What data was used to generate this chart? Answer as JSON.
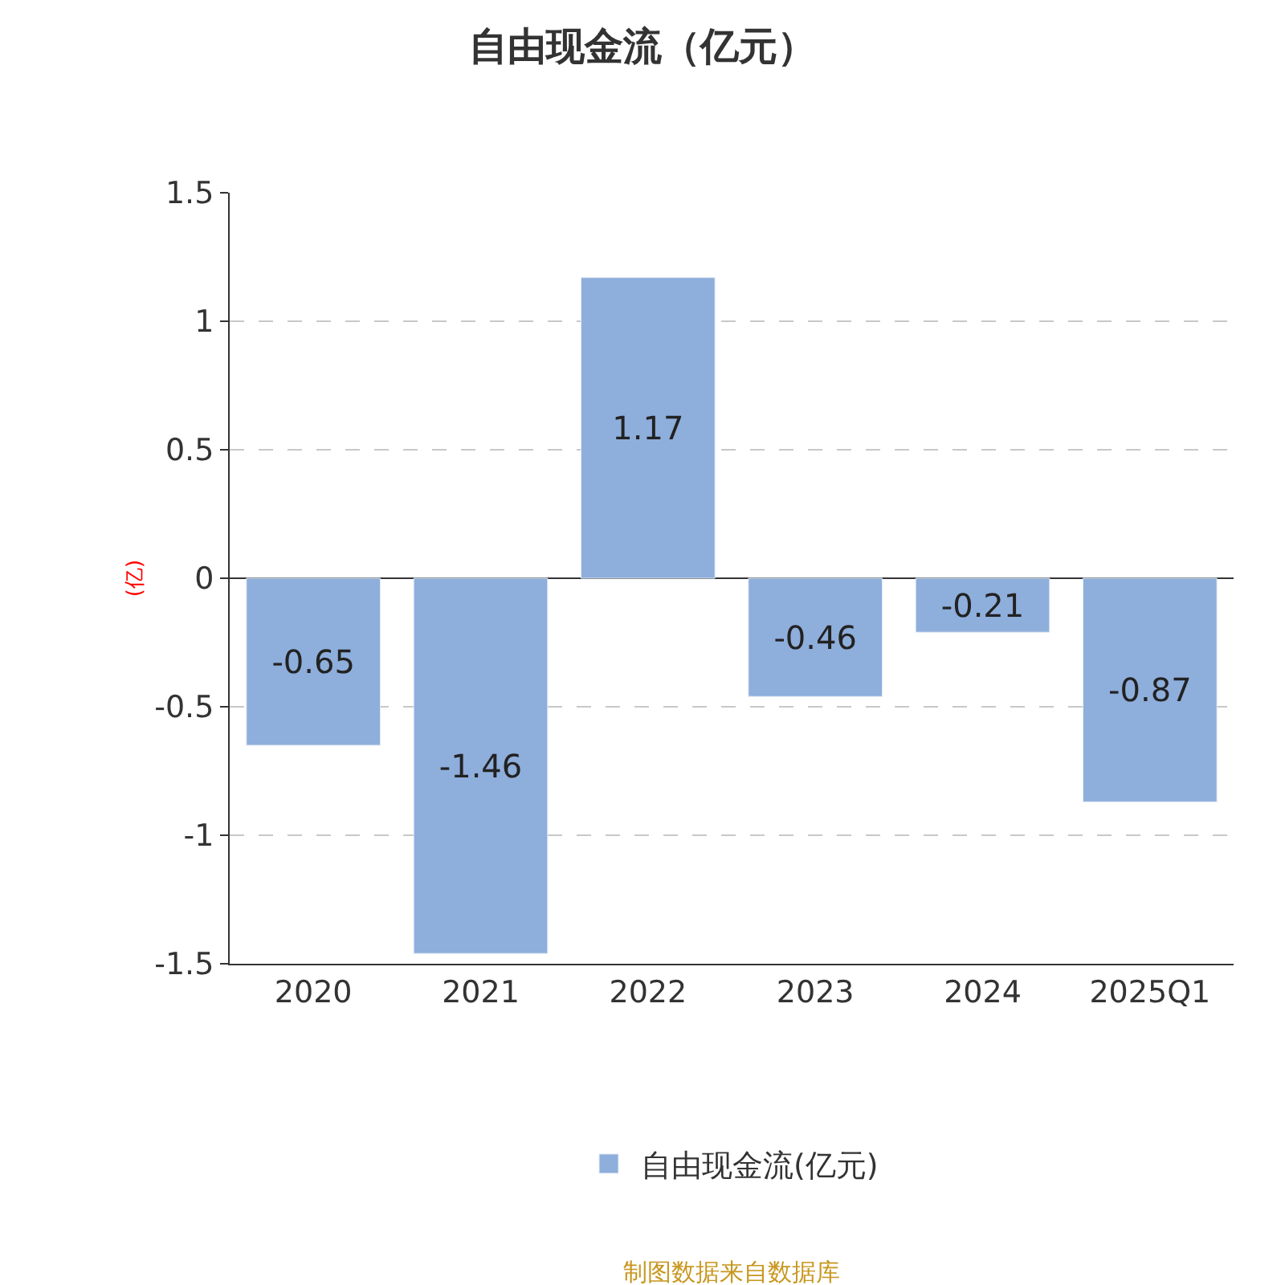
{
  "chart_data": {
    "type": "bar",
    "title": "自由现金流（亿元）",
    "ylabel": "(亿)",
    "categories": [
      "2020",
      "2021",
      "2022",
      "2023",
      "2024",
      "2025Q1"
    ],
    "series": [
      {
        "name": "自由现金流(亿元)",
        "color": "#8eaedb",
        "values": [
          -0.65,
          -1.46,
          1.17,
          -0.46,
          -0.21,
          -0.87
        ]
      }
    ],
    "ylim": [
      -1.5,
      1.5
    ],
    "yticks": [
      -1.5,
      -1,
      -0.5,
      0,
      0.5,
      1,
      1.5
    ],
    "grid": "y",
    "legend": "bottom",
    "data_labels": true,
    "annotations": [
      "制图数据来自数据库"
    ]
  }
}
